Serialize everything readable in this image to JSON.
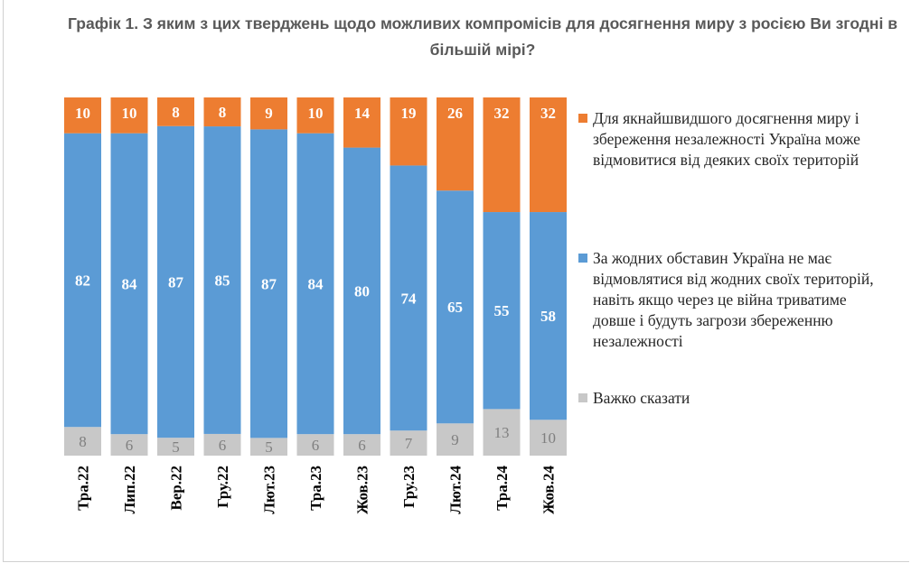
{
  "title": "Графік 1. З яким з цих тверджень щодо можливих компромісів для досягнення миру з росією Ви згодні в більшій мірі?",
  "colors": {
    "orange": "#ed7d31",
    "blue": "#5b9bd5",
    "grey": "#c8c8c8"
  },
  "chart_data": {
    "type": "bar",
    "stacked": true,
    "categories": [
      "Тра.22",
      "Лип.22",
      "Вер.22",
      "Гру.22",
      "Лют.23",
      "Тра.23",
      "Жов.23",
      "Гру.23",
      "Лют.24",
      "Тра.24",
      "Жов.24"
    ],
    "series": [
      {
        "name": "Важко сказати",
        "color": "#c8c8c8",
        "values": [
          8,
          6,
          5,
          6,
          5,
          6,
          6,
          7,
          9,
          13,
          10
        ]
      },
      {
        "name": "За жодних обставин Україна не має відмовлятися від жодних своїх територій, навіть якщо через це війна триватиме довше і будуть загрози збереженню незалежності",
        "color": "#5b9bd5",
        "values": [
          82,
          84,
          87,
          85,
          87,
          84,
          80,
          74,
          65,
          55,
          58
        ]
      },
      {
        "name": "Для якнайшвидшого досягнення миру і збереження незалежності Україна може відмовитися від деяких своїх територій",
        "color": "#ed7d31",
        "values": [
          10,
          10,
          8,
          8,
          9,
          10,
          14,
          19,
          26,
          32,
          32
        ]
      }
    ],
    "ylim": [
      0,
      100
    ],
    "grid": false,
    "legend_position": "right",
    "category_label_orientation": "vertical"
  },
  "legend": [
    {
      "series": 2,
      "text": "Для якнайшвидшого досягнення миру і збереження незалежності Україна може відмовитися від деяких своїх територій"
    },
    {
      "series": 1,
      "text": "За жодних обставин Україна не має відмовлятися від жодних своїх територій, навіть якщо через це війна триватиме довше і будуть загрози збереженню незалежності"
    },
    {
      "series": 0,
      "text": "Важко сказати"
    }
  ]
}
